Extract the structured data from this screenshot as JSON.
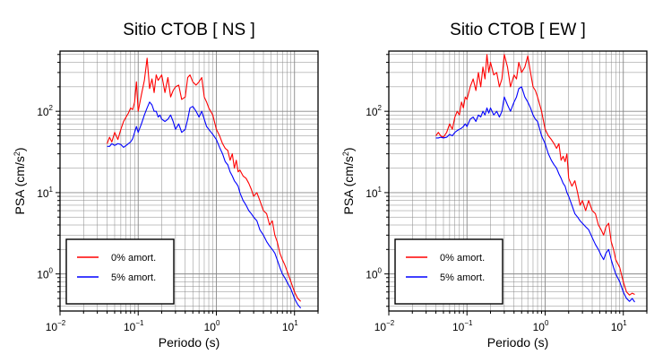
{
  "chart_data": [
    {
      "type": "line",
      "title": "Sitio CTOB [ NS ]",
      "xlabel": "Periodo (s)",
      "ylabel": "PSA (cm/s2)",
      "xscale": "log",
      "yscale": "log",
      "xlim": [
        0.01,
        20
      ],
      "ylim": [
        0.35,
        550
      ],
      "xticks": [
        {
          "base": "10",
          "exp": "−2"
        },
        {
          "base": "10",
          "exp": "−1"
        },
        {
          "base": "10",
          "exp": "0"
        },
        {
          "base": "10",
          "exp": "1"
        }
      ],
      "yticks": [
        {
          "base": "10",
          "exp": "0"
        },
        {
          "base": "10",
          "exp": "1"
        },
        {
          "base": "10",
          "exp": "2"
        }
      ],
      "grid": true,
      "legend_position": "bottom-left",
      "series": [
        {
          "name": "0% amort.",
          "color": "#ff0000",
          "x": [
            0.04,
            0.043,
            0.046,
            0.05,
            0.055,
            0.06,
            0.065,
            0.07,
            0.075,
            0.08,
            0.085,
            0.09,
            0.095,
            0.1,
            0.11,
            0.12,
            0.13,
            0.14,
            0.15,
            0.16,
            0.17,
            0.18,
            0.19,
            0.2,
            0.22,
            0.24,
            0.26,
            0.28,
            0.3,
            0.33,
            0.36,
            0.4,
            0.43,
            0.46,
            0.5,
            0.55,
            0.6,
            0.65,
            0.7,
            0.75,
            0.8,
            0.9,
            1.0,
            1.1,
            1.2,
            1.3,
            1.4,
            1.5,
            1.6,
            1.7,
            1.8,
            1.9,
            2.0,
            2.2,
            2.4,
            2.6,
            2.8,
            3.0,
            3.3,
            3.6,
            4.0,
            4.4,
            4.8,
            5.2,
            5.6,
            6.0,
            6.5,
            7.0,
            7.5,
            8.0,
            9.0,
            10.0,
            11.0,
            12.0
          ],
          "y": [
            40,
            48,
            42,
            55,
            45,
            60,
            75,
            85,
            95,
            110,
            105,
            130,
            230,
            100,
            160,
            240,
            450,
            190,
            250,
            170,
            280,
            240,
            260,
            280,
            170,
            260,
            150,
            180,
            200,
            210,
            140,
            150,
            260,
            280,
            230,
            210,
            230,
            260,
            150,
            130,
            110,
            90,
            60,
            50,
            40,
            35,
            33,
            25,
            30,
            20,
            25,
            18,
            19,
            16,
            15,
            13,
            11,
            9,
            10,
            8,
            6,
            5.5,
            4,
            4.5,
            3,
            2.5,
            1.8,
            1.5,
            1.3,
            1.1,
            0.8,
            0.6,
            0.5,
            0.46
          ]
        },
        {
          "name": "5% amort.",
          "color": "#0000ff",
          "x": [
            0.04,
            0.043,
            0.046,
            0.05,
            0.055,
            0.06,
            0.065,
            0.07,
            0.075,
            0.08,
            0.085,
            0.09,
            0.095,
            0.1,
            0.11,
            0.12,
            0.13,
            0.14,
            0.15,
            0.16,
            0.17,
            0.18,
            0.19,
            0.2,
            0.22,
            0.24,
            0.26,
            0.28,
            0.3,
            0.33,
            0.36,
            0.4,
            0.43,
            0.46,
            0.5,
            0.55,
            0.6,
            0.65,
            0.7,
            0.75,
            0.8,
            0.9,
            1.0,
            1.1,
            1.2,
            1.3,
            1.4,
            1.5,
            1.6,
            1.7,
            1.8,
            1.9,
            2.0,
            2.2,
            2.4,
            2.6,
            2.8,
            3.0,
            3.3,
            3.6,
            4.0,
            4.4,
            4.8,
            5.2,
            5.6,
            6.0,
            6.5,
            7.0,
            7.5,
            8.0,
            9.0,
            10.0,
            11.0,
            12.0
          ],
          "y": [
            37,
            37,
            40,
            38,
            40,
            39,
            36,
            38,
            40,
            42,
            46,
            55,
            65,
            55,
            70,
            90,
            110,
            130,
            120,
            100,
            100,
            85,
            90,
            80,
            75,
            80,
            90,
            75,
            60,
            70,
            55,
            60,
            80,
            110,
            115,
            100,
            85,
            100,
            80,
            65,
            60,
            52,
            45,
            36,
            30,
            24,
            22,
            18,
            16,
            14,
            13,
            12,
            10,
            8,
            7,
            6,
            5.5,
            5,
            4.5,
            3.5,
            3,
            2.5,
            2.2,
            2,
            1.8,
            1.5,
            1.2,
            1.0,
            0.9,
            0.8,
            0.65,
            0.5,
            0.42,
            0.38
          ]
        }
      ]
    },
    {
      "type": "line",
      "title": "Sitio CTOB [ EW ]",
      "xlabel": "Periodo (s)",
      "ylabel": "PSA (cm/s2)",
      "xscale": "log",
      "yscale": "log",
      "xlim": [
        0.01,
        20
      ],
      "ylim": [
        0.35,
        550
      ],
      "xticks": [
        {
          "base": "10",
          "exp": "−2"
        },
        {
          "base": "10",
          "exp": "−1"
        },
        {
          "base": "10",
          "exp": "0"
        },
        {
          "base": "10",
          "exp": "1"
        }
      ],
      "yticks": [
        {
          "base": "10",
          "exp": "0"
        },
        {
          "base": "10",
          "exp": "1"
        },
        {
          "base": "10",
          "exp": "2"
        }
      ],
      "grid": true,
      "legend_position": "bottom-left",
      "series": [
        {
          "name": "0% amort.",
          "color": "#ff0000",
          "x": [
            0.04,
            0.043,
            0.046,
            0.05,
            0.055,
            0.06,
            0.065,
            0.07,
            0.075,
            0.08,
            0.085,
            0.09,
            0.095,
            0.1,
            0.11,
            0.12,
            0.13,
            0.14,
            0.15,
            0.16,
            0.17,
            0.18,
            0.19,
            0.2,
            0.22,
            0.24,
            0.26,
            0.28,
            0.3,
            0.33,
            0.36,
            0.4,
            0.43,
            0.46,
            0.5,
            0.55,
            0.6,
            0.65,
            0.7,
            0.75,
            0.8,
            0.9,
            1.0,
            1.1,
            1.2,
            1.3,
            1.4,
            1.5,
            1.6,
            1.7,
            1.8,
            1.9,
            2.0,
            2.2,
            2.4,
            2.6,
            2.8,
            3.0,
            3.3,
            3.6,
            4.0,
            4.4,
            4.8,
            5.2,
            5.6,
            6.0,
            6.5,
            7.0,
            7.5,
            8.0,
            9.0,
            10.0,
            11.0,
            12.0,
            13.0,
            14.0
          ],
          "y": [
            50,
            55,
            50,
            48,
            55,
            70,
            60,
            85,
            100,
            90,
            130,
            110,
            150,
            140,
            200,
            250,
            180,
            300,
            200,
            350,
            250,
            500,
            300,
            400,
            280,
            300,
            200,
            250,
            500,
            350,
            200,
            280,
            250,
            400,
            300,
            350,
            480,
            300,
            200,
            180,
            150,
            100,
            60,
            50,
            45,
            40,
            35,
            40,
            25,
            28,
            24,
            30,
            15,
            12,
            14,
            10,
            7,
            8,
            6,
            8,
            6,
            5.5,
            4,
            3.5,
            3,
            3.8,
            4.2,
            2.5,
            2,
            1.5,
            1.2,
            0.8,
            0.6,
            0.55,
            0.58,
            0.56
          ]
        },
        {
          "name": "5% amort.",
          "color": "#0000ff",
          "x": [
            0.04,
            0.043,
            0.046,
            0.05,
            0.055,
            0.06,
            0.065,
            0.07,
            0.075,
            0.08,
            0.085,
            0.09,
            0.095,
            0.1,
            0.11,
            0.12,
            0.13,
            0.14,
            0.15,
            0.16,
            0.17,
            0.18,
            0.19,
            0.2,
            0.22,
            0.24,
            0.26,
            0.28,
            0.3,
            0.33,
            0.36,
            0.4,
            0.43,
            0.46,
            0.5,
            0.55,
            0.6,
            0.65,
            0.7,
            0.75,
            0.8,
            0.9,
            1.0,
            1.1,
            1.2,
            1.3,
            1.4,
            1.5,
            1.6,
            1.7,
            1.8,
            1.9,
            2.0,
            2.2,
            2.4,
            2.6,
            2.8,
            3.0,
            3.3,
            3.6,
            4.0,
            4.4,
            4.8,
            5.2,
            5.6,
            6.0,
            6.5,
            7.0,
            7.5,
            8.0,
            9.0,
            10.0,
            11.0,
            12.0,
            13.0,
            14.0
          ],
          "y": [
            47,
            47,
            48,
            47,
            48,
            52,
            50,
            55,
            58,
            60,
            62,
            65,
            70,
            65,
            80,
            85,
            75,
            90,
            85,
            100,
            90,
            110,
            95,
            110,
            90,
            100,
            85,
            100,
            150,
            120,
            100,
            130,
            150,
            190,
            200,
            150,
            130,
            110,
            90,
            80,
            75,
            50,
            40,
            30,
            25,
            22,
            20,
            17,
            15,
            13,
            12,
            10,
            9,
            7,
            5.5,
            5,
            4.5,
            4.2,
            3.8,
            3.5,
            2.8,
            2.3,
            2,
            1.7,
            1.5,
            1.8,
            2.0,
            1.5,
            1.2,
            1.0,
            0.8,
            0.6,
            0.5,
            0.46,
            0.5,
            0.45
          ]
        }
      ]
    }
  ]
}
